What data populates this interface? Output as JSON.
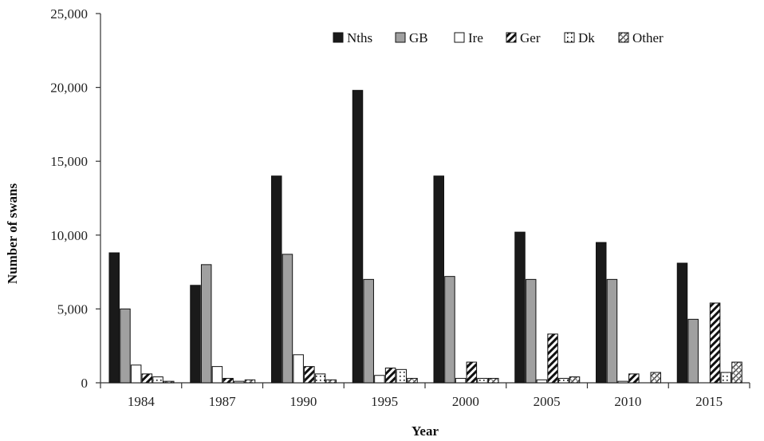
{
  "chart_data": {
    "type": "bar",
    "xlabel": "Year",
    "ylabel": "Number of swans",
    "ylim": [
      0,
      25000
    ],
    "yticks": [
      0,
      5000,
      10000,
      15000,
      20000,
      25000
    ],
    "ytick_labels": [
      "0",
      "5,000",
      "10,000",
      "15,000",
      "20,000",
      "25,000"
    ],
    "categories": [
      "1984",
      "1987",
      "1990",
      "1995",
      "2000",
      "2005",
      "2010",
      "2015"
    ],
    "legend_position": "top-right",
    "grid": false,
    "series": [
      {
        "name": "Nths",
        "fill": "solid-black",
        "values": [
          8800,
          6600,
          14000,
          19800,
          14000,
          10200,
          9500,
          8100
        ]
      },
      {
        "name": "GB",
        "fill": "solid-gray",
        "values": [
          5000,
          8000,
          8700,
          7000,
          7200,
          7000,
          7000,
          4300
        ]
      },
      {
        "name": "Ire",
        "fill": "white",
        "values": [
          1200,
          1100,
          1900,
          500,
          300,
          200,
          100,
          0
        ]
      },
      {
        "name": "Ger",
        "fill": "diagonal-black",
        "values": [
          600,
          300,
          1100,
          1000,
          1400,
          3300,
          600,
          5400
        ]
      },
      {
        "name": "Dk",
        "fill": "dotted",
        "values": [
          400,
          100,
          600,
          900,
          300,
          300,
          0,
          700
        ]
      },
      {
        "name": "Other",
        "fill": "crosshatch",
        "values": [
          100,
          200,
          200,
          300,
          300,
          400,
          700,
          1400
        ]
      }
    ]
  }
}
